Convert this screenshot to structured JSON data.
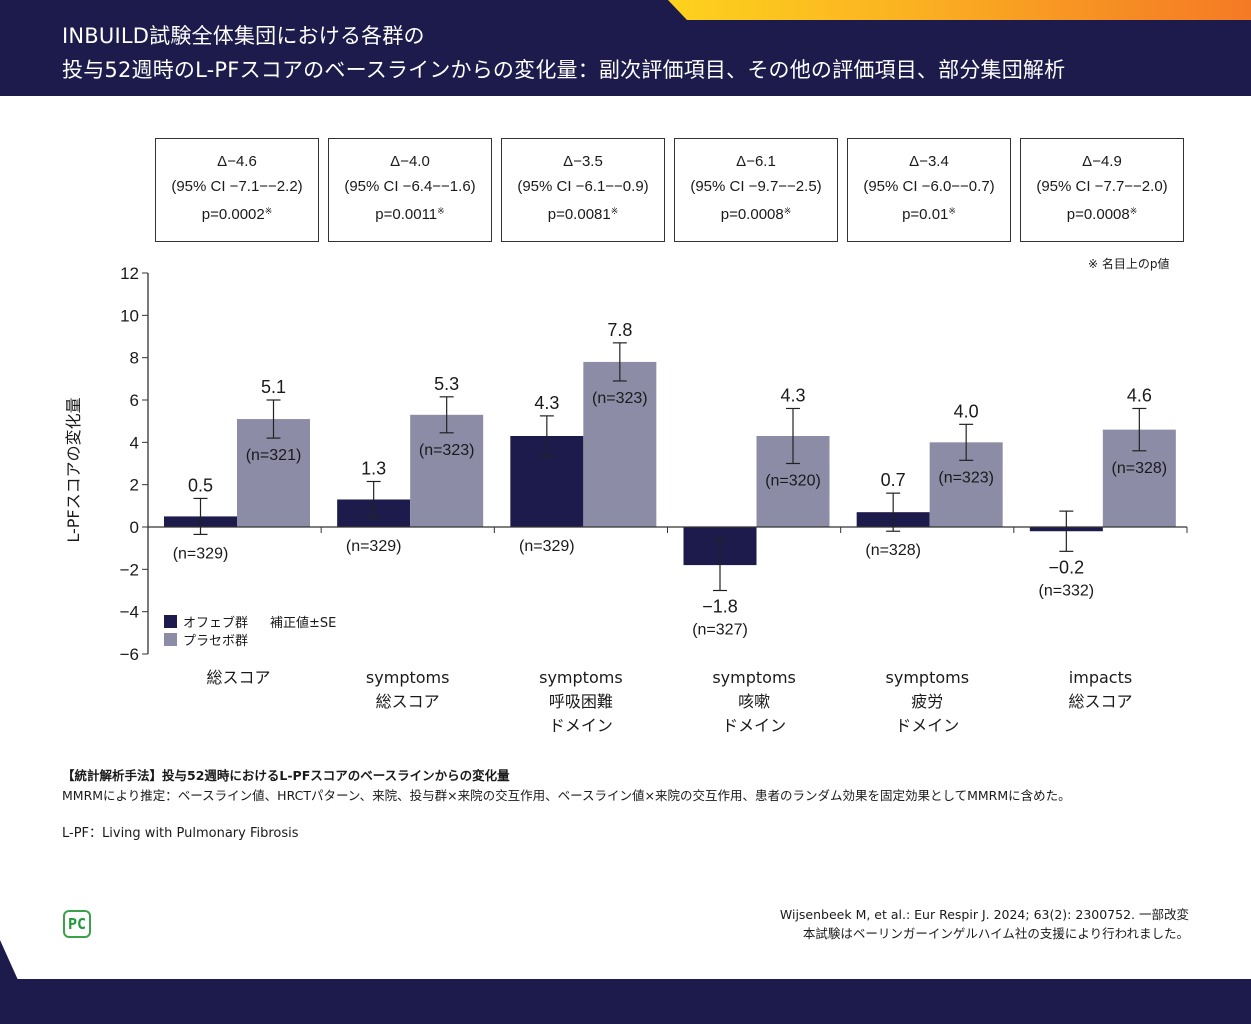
{
  "header": {
    "title_line1": "INBUILD試験全体集団における各群の",
    "title_line2": "投与52週時のL-PFスコアのベースラインからの変化量：副次評価項目、その他の評価項目、部分集団解析"
  },
  "stat_boxes": [
    {
      "delta": "Δ−4.6",
      "ci": "(95% CI −7.1−−2.2)",
      "p": "p=0.0002",
      "mark": "※"
    },
    {
      "delta": "Δ−4.0",
      "ci": "(95% CI −6.4−−1.6)",
      "p": "p=0.0011",
      "mark": "※"
    },
    {
      "delta": "Δ−3.5",
      "ci": "(95% CI −6.1−−0.9)",
      "p": "p=0.0081",
      "mark": "※"
    },
    {
      "delta": "Δ−6.1",
      "ci": "(95% CI −9.7−−2.5)",
      "p": "p=0.0008",
      "mark": "※"
    },
    {
      "delta": "Δ−3.4",
      "ci": "(95% CI −6.0−−0.7)",
      "p": "p=0.01",
      "mark": "※"
    },
    {
      "delta": "Δ−4.9",
      "ci": "(95% CI −7.7−−2.0)",
      "p": "p=0.0008",
      "mark": "※"
    }
  ],
  "p_note": "※ 名目上のp値",
  "legend": {
    "items": [
      {
        "label": "オフェブ群",
        "color": "#1c1b4b"
      },
      {
        "label": "プラセボ群",
        "color": "#8c8ca6"
      }
    ],
    "note": "補正値±SE"
  },
  "categories": [
    {
      "lines": [
        "総スコア"
      ]
    },
    {
      "lines": [
        "symptoms",
        "総スコア"
      ]
    },
    {
      "lines": [
        "symptoms",
        "呼吸困難",
        "ドメイン"
      ]
    },
    {
      "lines": [
        "symptoms",
        "咳嗽",
        "ドメイン"
      ]
    },
    {
      "lines": [
        "symptoms",
        "疲労",
        "ドメイン"
      ]
    },
    {
      "lines": [
        "impacts",
        "総スコア"
      ]
    }
  ],
  "chart_data": {
    "type": "bar",
    "title": "",
    "xlabel": "",
    "ylabel": "L-PFスコアの変化量",
    "ylim": [
      -6,
      12
    ],
    "yticks": [
      -6,
      -4,
      -2,
      0,
      2,
      4,
      6,
      8,
      10,
      12
    ],
    "ytick_labels": [
      "−6",
      "−4",
      "−2",
      "0",
      "2",
      "4",
      "6",
      "8",
      "10",
      "12"
    ],
    "categories": [
      "総スコア",
      "symptoms 総スコア",
      "symptoms 呼吸困難ドメイン",
      "symptoms 咳嗽ドメイン",
      "symptoms 疲労ドメイン",
      "impacts 総スコア"
    ],
    "error_type": "SE",
    "series": [
      {
        "name": "オフェブ群",
        "color": "#1c1b4b",
        "values": [
          0.5,
          1.3,
          4.3,
          -1.8,
          0.7,
          -0.2
        ],
        "value_labels": [
          "0.5",
          "1.3",
          "4.3",
          "−1.8",
          "0.7",
          "−0.2"
        ],
        "se": [
          0.85,
          0.85,
          0.95,
          1.2,
          0.9,
          0.95
        ],
        "n": [
          "(n=329)",
          "(n=329)",
          "(n=329)",
          "(n=327)",
          "(n=328)",
          "(n=332)"
        ]
      },
      {
        "name": "プラセボ群",
        "color": "#8c8ca6",
        "values": [
          5.1,
          5.3,
          7.8,
          4.3,
          4.0,
          4.6
        ],
        "value_labels": [
          "5.1",
          "5.3",
          "7.8",
          "4.3",
          "4.0",
          "4.6"
        ],
        "se": [
          0.9,
          0.85,
          0.9,
          1.3,
          0.85,
          1.0
        ],
        "n": [
          "(n=321)",
          "(n=323)",
          "(n=323)",
          "(n=320)",
          "(n=323)",
          "(n=328)"
        ]
      }
    ],
    "grid": false,
    "legend_position": "bottom-left"
  },
  "methods": {
    "heading": "【統計解析手法】投与52週時におけるL-PFスコアのベースラインからの変化量",
    "body": "MMRMにより推定：ベースライン値、HRCTパターン、来院、投与群×来院の交互作用、ベースライン値×来院の交互作用、患者のランダム効果を固定効果としてMMRMに含めた。"
  },
  "abbreviation": "L-PF：Living with Pulmonary Fibrosis",
  "logo_text": "PC",
  "citation": {
    "line1": "Wijsenbeek M, et al.: Eur Respir J. 2024; 63(2): 2300752. 一部改変",
    "line2": "本試験はベーリンガーインゲルハイム社の支援により行われました。"
  }
}
